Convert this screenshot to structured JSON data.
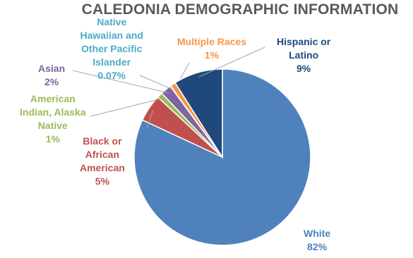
{
  "chart_data": {
    "type": "pie",
    "title": "CALEDONIA DEMOGRAPHIC INFORMATION",
    "slices": [
      {
        "name": "White",
        "value": 82,
        "value_label": "82%",
        "color": "#4F81BD",
        "label_lines": [
          "White"
        ]
      },
      {
        "name": "Black or African American",
        "value": 5,
        "value_label": "5%",
        "color": "#C0504D",
        "label_lines": [
          "Black or",
          "African",
          "American"
        ]
      },
      {
        "name": "American Indian, Alaska Native",
        "value": 1,
        "value_label": "1%",
        "color": "#9BBB59",
        "label_lines": [
          "American",
          "Indian, Alaska",
          "Native"
        ]
      },
      {
        "name": "Asian",
        "value": 2,
        "value_label": "2%",
        "color": "#8064A2",
        "label_lines": [
          "Asian"
        ]
      },
      {
        "name": "Native Hawaiian and Other Pacific Islander",
        "value": 0.07,
        "value_label": "0.07%",
        "color": "#4BACC6",
        "label_lines": [
          "Native",
          "Hawaiian and",
          "Other Pacific",
          "Islander"
        ]
      },
      {
        "name": "Multiple Races",
        "value": 1,
        "value_label": "1%",
        "color": "#F79646",
        "label_lines": [
          "Multiple Races"
        ]
      },
      {
        "name": "Hispanic or Latino",
        "value": 9,
        "value_label": "9%",
        "color": "#1F497D",
        "label_lines": [
          "Hispanic or",
          "Latino"
        ]
      }
    ],
    "start_angle_deg": 0,
    "direction": "clockwise",
    "legend": "none",
    "label_position": "outside-with-leader-lines"
  }
}
